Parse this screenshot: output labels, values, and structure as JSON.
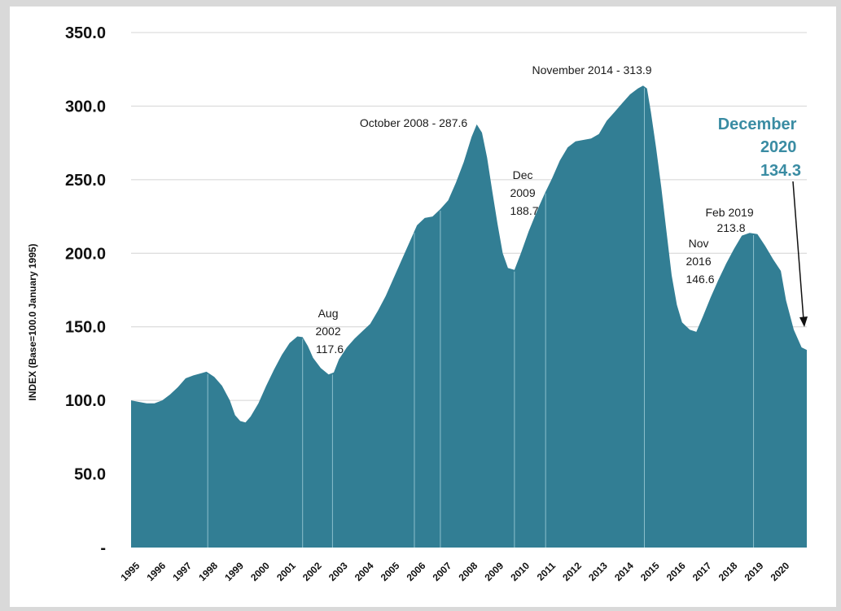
{
  "chart_data": {
    "type": "area",
    "title": "",
    "xlabel": "",
    "ylabel": "INDEX (Base=100.0 January 1995)",
    "ylim": [
      0,
      350
    ],
    "yticks": [
      0,
      50,
      100,
      150,
      200,
      250,
      300,
      350
    ],
    "ytick_labels": [
      "-",
      "50.0",
      "100.0",
      "150.0",
      "200.0",
      "250.0",
      "300.0",
      "350.0"
    ],
    "xlim": [
      1995.0,
      2021.0
    ],
    "xtick_labels": [
      "1995",
      "1996",
      "1997",
      "1998",
      "1999",
      "2000",
      "2001",
      "2002",
      "2003",
      "2004",
      "2005",
      "2006",
      "2007",
      "2008",
      "2009",
      "2010",
      "2011",
      "2012",
      "2013",
      "2014",
      "2015",
      "2016",
      "2017",
      "2018",
      "2019",
      "2020"
    ],
    "grid": true,
    "series": [
      {
        "name": "Index",
        "color": "#327e94",
        "points": [
          [
            1995.0,
            100.0
          ],
          [
            1995.3,
            99.0
          ],
          [
            1995.6,
            98.0
          ],
          [
            1995.9,
            98.0
          ],
          [
            1996.2,
            100.0
          ],
          [
            1996.5,
            104.0
          ],
          [
            1996.8,
            109.0
          ],
          [
            1997.1,
            115.0
          ],
          [
            1997.4,
            117.0
          ],
          [
            1997.7,
            118.5
          ],
          [
            1997.9,
            119.5
          ],
          [
            1998.2,
            116.0
          ],
          [
            1998.5,
            110.0
          ],
          [
            1998.8,
            100.0
          ],
          [
            1999.0,
            90.0
          ],
          [
            1999.2,
            86.0
          ],
          [
            1999.4,
            85.0
          ],
          [
            1999.6,
            89.0
          ],
          [
            1999.9,
            98.0
          ],
          [
            2000.2,
            110.0
          ],
          [
            2000.5,
            121.0
          ],
          [
            2000.8,
            131.0
          ],
          [
            2001.1,
            139.0
          ],
          [
            2001.4,
            143.5
          ],
          [
            2001.6,
            143.0
          ],
          [
            2001.8,
            137.0
          ],
          [
            2002.0,
            129.0
          ],
          [
            2002.3,
            122.0
          ],
          [
            2002.6,
            117.6
          ],
          [
            2002.8,
            119.0
          ],
          [
            2003.0,
            128.0
          ],
          [
            2003.3,
            136.0
          ],
          [
            2003.6,
            142.0
          ],
          [
            2003.9,
            147.0
          ],
          [
            2004.2,
            152.0
          ],
          [
            2004.5,
            161.0
          ],
          [
            2004.8,
            171.0
          ],
          [
            2005.1,
            183.0
          ],
          [
            2005.4,
            195.0
          ],
          [
            2005.7,
            207.0
          ],
          [
            2006.0,
            219.0
          ],
          [
            2006.3,
            224.0
          ],
          [
            2006.6,
            225.0
          ],
          [
            2006.9,
            230.0
          ],
          [
            2007.2,
            236.0
          ],
          [
            2007.5,
            248.0
          ],
          [
            2007.8,
            262.0
          ],
          [
            2008.1,
            279.0
          ],
          [
            2008.3,
            287.6
          ],
          [
            2008.5,
            282.0
          ],
          [
            2008.7,
            265.0
          ],
          [
            2008.9,
            242.0
          ],
          [
            2009.1,
            220.0
          ],
          [
            2009.3,
            200.0
          ],
          [
            2009.5,
            190.0
          ],
          [
            2009.75,
            188.7
          ],
          [
            2010.0,
            200.0
          ],
          [
            2010.3,
            215.0
          ],
          [
            2010.6,
            228.0
          ],
          [
            2010.9,
            240.0
          ],
          [
            2011.2,
            251.0
          ],
          [
            2011.5,
            263.0
          ],
          [
            2011.8,
            272.0
          ],
          [
            2012.1,
            276.0
          ],
          [
            2012.4,
            277.0
          ],
          [
            2012.7,
            278.0
          ],
          [
            2013.0,
            281.0
          ],
          [
            2013.3,
            290.0
          ],
          [
            2013.6,
            296.0
          ],
          [
            2013.9,
            302.0
          ],
          [
            2014.2,
            308.0
          ],
          [
            2014.5,
            312.0
          ],
          [
            2014.7,
            313.9
          ],
          [
            2014.85,
            312.0
          ],
          [
            2015.0,
            296.0
          ],
          [
            2015.2,
            272.0
          ],
          [
            2015.4,
            245.0
          ],
          [
            2015.6,
            215.0
          ],
          [
            2015.8,
            185.0
          ],
          [
            2016.0,
            165.0
          ],
          [
            2016.2,
            153.0
          ],
          [
            2016.5,
            148.0
          ],
          [
            2016.75,
            146.6
          ],
          [
            2017.0,
            157.0
          ],
          [
            2017.3,
            170.0
          ],
          [
            2017.6,
            182.0
          ],
          [
            2017.9,
            193.0
          ],
          [
            2018.2,
            203.0
          ],
          [
            2018.5,
            212.0
          ],
          [
            2018.8,
            213.8
          ],
          [
            2019.1,
            213.0
          ],
          [
            2019.4,
            205.0
          ],
          [
            2019.7,
            196.0
          ],
          [
            2020.0,
            188.0
          ],
          [
            2020.2,
            168.0
          ],
          [
            2020.5,
            148.0
          ],
          [
            2020.8,
            136.0
          ],
          [
            2021.0,
            134.3
          ]
        ]
      }
    ],
    "annotations": [
      {
        "id": "aug-2002",
        "lines": [
          "Aug",
          "2002",
          "117.6"
        ]
      },
      {
        "id": "oct-2008",
        "lines": [
          "October 2008 - 287.6"
        ]
      },
      {
        "id": "dec-2009",
        "lines": [
          "Dec",
          "2009",
          "188.7"
        ]
      },
      {
        "id": "nov-2014",
        "lines": [
          "November 2014 - 313.9"
        ]
      },
      {
        "id": "nov-2016",
        "lines": [
          "Nov",
          "2016",
          "146.6"
        ]
      },
      {
        "id": "feb-2019",
        "lines": [
          "Feb 2019",
          "213.8"
        ]
      },
      {
        "id": "dec-2020",
        "lines": [
          "December",
          "2020",
          "134.3"
        ],
        "color": "#3a8ca3"
      }
    ],
    "highlight_years": [
      1997.95,
      2001.6,
      2002.75,
      2005.9,
      2006.9,
      2009.75,
      2010.95,
      2014.75,
      2018.95
    ]
  }
}
